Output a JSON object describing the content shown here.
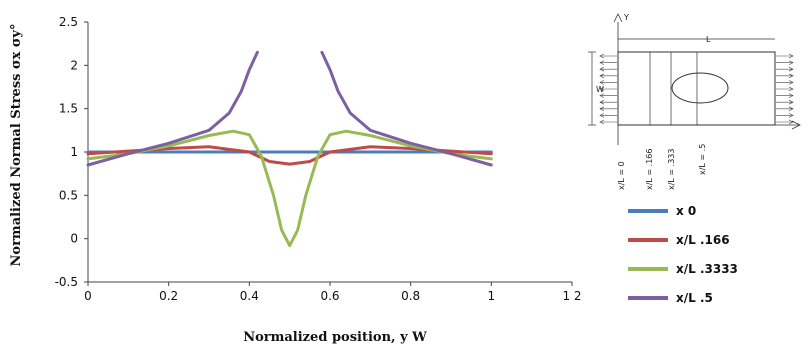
{
  "chart_data": {
    "type": "line",
    "xlabel": "Normalized position, y W",
    "ylabel": "Normalized Normal Stress σx σy°",
    "xlim": [
      0,
      1.2
    ],
    "ylim": [
      -0.5,
      2.5
    ],
    "xticks": [
      "0",
      "0.2",
      "0.4",
      "0.6",
      "0.8",
      "1",
      "1 2"
    ],
    "yticks": [
      "-0.5",
      "0",
      "0.5",
      "1",
      "1.5",
      "2",
      "2.5"
    ],
    "grid": false,
    "legend_position": "right",
    "colors": {
      "s0": "#4a7ebb",
      "s1": "#be4b48",
      "s2": "#98b954",
      "s3": "#7d60a0"
    },
    "series": [
      {
        "name": "x  0",
        "x": [
          0,
          0.2,
          0.4,
          0.5,
          0.6,
          0.8,
          1.0
        ],
        "y": [
          1.0,
          1.0,
          1.0,
          1.0,
          1.0,
          1.0,
          1.0
        ]
      },
      {
        "name": "x/L .166",
        "x": [
          0,
          0.1,
          0.2,
          0.3,
          0.4,
          0.45,
          0.5,
          0.55,
          0.6,
          0.7,
          0.8,
          0.9,
          1.0
        ],
        "y": [
          0.98,
          1.01,
          1.04,
          1.06,
          1.0,
          0.89,
          0.86,
          0.89,
          1.0,
          1.06,
          1.04,
          1.01,
          0.98
        ]
      },
      {
        "name": "x/L .3333",
        "x": [
          0,
          0.1,
          0.2,
          0.3,
          0.36,
          0.4,
          0.43,
          0.46,
          0.48,
          0.5,
          0.52,
          0.54,
          0.57,
          0.6,
          0.64,
          0.7,
          0.8,
          0.9,
          1.0
        ],
        "y": [
          0.92,
          0.98,
          1.07,
          1.19,
          1.24,
          1.2,
          0.95,
          0.5,
          0.1,
          -0.08,
          0.1,
          0.5,
          0.95,
          1.2,
          1.24,
          1.19,
          1.07,
          0.98,
          0.92
        ]
      },
      {
        "name": "x/L .5",
        "x": [
          0,
          0.1,
          0.2,
          0.3,
          0.35,
          0.38,
          0.4,
          0.42,
          0.58,
          0.6,
          0.62,
          0.65,
          0.7,
          0.8,
          0.9,
          1.0
        ],
        "y": [
          0.85,
          0.98,
          1.1,
          1.25,
          1.45,
          1.7,
          1.95,
          2.15,
          2.15,
          1.95,
          1.7,
          1.45,
          1.25,
          1.1,
          0.98,
          0.85
        ]
      }
    ]
  },
  "schematic": {
    "y_axis": "Y",
    "length": "L",
    "width": "W",
    "sections": [
      "x/L = 0",
      "x/L = .166",
      "x/L = .333",
      "x/L = .5"
    ]
  }
}
